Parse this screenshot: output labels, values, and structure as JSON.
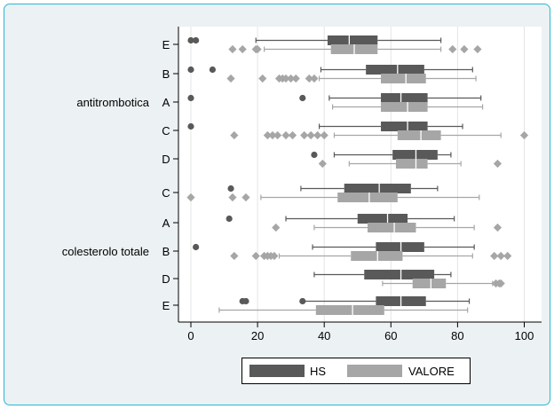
{
  "chart_data": {
    "type": "boxplot",
    "orientation": "horizontal",
    "x_ticks": [
      0,
      20,
      40,
      60,
      80,
      100
    ],
    "xlim": [
      -3,
      103
    ],
    "grid": "vertical",
    "legend_position": "bottom",
    "series_styles": [
      {
        "name": "HS",
        "color": "#595959"
      },
      {
        "name": "VALORE",
        "color": "#a6a6a6"
      }
    ],
    "groups": [
      {
        "label": "antitrombotica",
        "rows": [
          {
            "label": "E",
            "HS": {
              "whisker_low": 19.5,
              "q1": 41,
              "median": 47.5,
              "q3": 56,
              "whisker_high": 75,
              "outliers": [
                0,
                1.5
              ]
            },
            "VALORE": {
              "whisker_low": 22,
              "q1": 42,
              "median": 49,
              "q3": 56,
              "whisker_high": 75,
              "outliers": [
                12.5,
                15.5,
                19.5,
                20,
                78.5,
                82,
                86
              ]
            }
          },
          {
            "label": "B",
            "HS": {
              "whisker_low": 39,
              "q1": 52.5,
              "median": 62,
              "q3": 70,
              "whisker_high": 84.5,
              "outliers": [
                0,
                6.5
              ]
            },
            "VALORE": {
              "whisker_low": 38.5,
              "q1": 57,
              "median": 64.5,
              "q3": 70.5,
              "whisker_high": 85.5,
              "outliers": [
                12,
                21.5,
                26.5,
                27.5,
                28.5,
                30,
                31.5,
                35.5,
                37
              ]
            }
          },
          {
            "label": "A",
            "HS": {
              "whisker_low": 41.5,
              "q1": 57,
              "median": 63,
              "q3": 71,
              "whisker_high": 87,
              "outliers": [
                0,
                33.5
              ]
            },
            "VALORE": {
              "whisker_low": 42.5,
              "q1": 57,
              "median": 65,
              "q3": 71,
              "whisker_high": 87.5,
              "outliers": []
            }
          },
          {
            "label": "C",
            "HS": {
              "whisker_low": 38.5,
              "q1": 57,
              "median": 65,
              "q3": 71,
              "whisker_high": 81.5,
              "outliers": [
                0
              ]
            },
            "VALORE": {
              "whisker_low": 43,
              "q1": 62,
              "median": 69,
              "q3": 75,
              "whisker_high": 93,
              "outliers": [
                13,
                23,
                24.5,
                26,
                28.5,
                30.5,
                34,
                36,
                38,
                40,
                100
              ]
            }
          },
          {
            "label": "D",
            "HS": {
              "whisker_low": 43,
              "q1": 60.5,
              "median": 67.5,
              "q3": 74,
              "whisker_high": 78,
              "outliers": [
                37
              ]
            },
            "VALORE": {
              "whisker_low": 47.5,
              "q1": 61.5,
              "median": 67.5,
              "q3": 71,
              "whisker_high": 81,
              "outliers": [
                39.5,
                92
              ]
            }
          }
        ]
      },
      {
        "label": "colesterolo totale",
        "rows": [
          {
            "label": "C",
            "HS": {
              "whisker_low": 33,
              "q1": 46,
              "median": 56.5,
              "q3": 66,
              "whisker_high": 74,
              "outliers": [
                12
              ]
            },
            "VALORE": {
              "whisker_low": 21,
              "q1": 44,
              "median": 53.5,
              "q3": 62,
              "whisker_high": 86.5,
              "outliers": [
                0,
                12.5,
                16.5
              ]
            }
          },
          {
            "label": "A",
            "HS": {
              "whisker_low": 28.5,
              "q1": 50,
              "median": 59,
              "q3": 65,
              "whisker_high": 79,
              "outliers": [
                11.5
              ]
            },
            "VALORE": {
              "whisker_low": 37,
              "q1": 53,
              "median": 61,
              "q3": 67.5,
              "whisker_high": 85,
              "outliers": [
                25.5,
                92
              ]
            }
          },
          {
            "label": "B",
            "HS": {
              "whisker_low": 36.5,
              "q1": 55.5,
              "median": 63,
              "q3": 70,
              "whisker_high": 85,
              "outliers": [
                1.5
              ]
            },
            "VALORE": {
              "whisker_low": 26.5,
              "q1": 48,
              "median": 56,
              "q3": 63.5,
              "whisker_high": 84.5,
              "outliers": [
                13,
                19.5,
                22,
                23,
                24,
                25,
                91,
                93,
                95
              ]
            }
          },
          {
            "label": "D",
            "HS": {
              "whisker_low": 37,
              "q1": 52,
              "median": 63,
              "q3": 73,
              "whisker_high": 78,
              "outliers": []
            },
            "VALORE": {
              "whisker_low": 57.5,
              "q1": 66.5,
              "median": 72,
              "q3": 76.5,
              "whisker_high": 90.5,
              "outliers": [
                91.5,
                92.5,
                93
              ]
            }
          },
          {
            "label": "E",
            "HS": {
              "whisker_low": 33.5,
              "q1": 55.5,
              "median": 63,
              "q3": 70.5,
              "whisker_high": 83.5,
              "outliers": [
                15.5,
                16.5,
                33.5
              ]
            },
            "VALORE": {
              "whisker_low": 8.5,
              "q1": 37.5,
              "median": 48.5,
              "q3": 58,
              "whisker_high": 83,
              "outliers": []
            }
          }
        ]
      }
    ]
  }
}
